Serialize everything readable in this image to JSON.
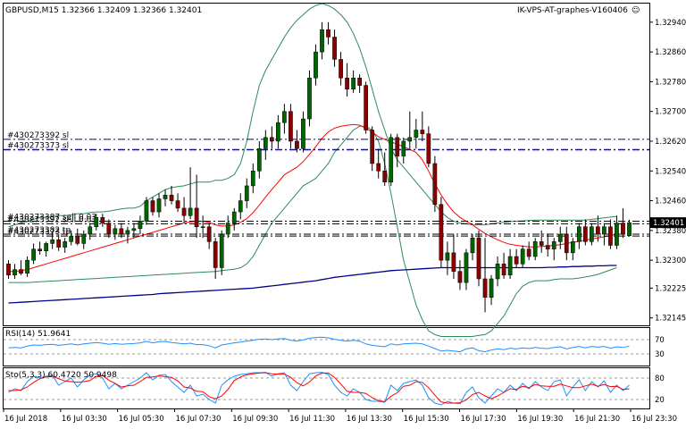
{
  "header": {
    "symbol_line": "GBPUSD,M15  1.32366 1.32409 1.32366 1.32401",
    "indicator_name": "IK-VPS-AT-graphes-V160406",
    "smiley": "☺"
  },
  "price_axis": {
    "ticks": [
      "1.32940",
      "1.32860",
      "1.32780",
      "1.32700",
      "1.32620",
      "1.32540",
      "1.32460",
      "1.32380",
      "1.32300",
      "1.32225",
      "1.32145"
    ],
    "current_price": "1.32401",
    "colors": {
      "current_bg": "#000000",
      "current_fg": "#ffffff"
    }
  },
  "order_lines": [
    {
      "label": "#430273392 sl",
      "price": 1.32625,
      "color": "#000080",
      "style": "dashdot"
    },
    {
      "label": "#430273373 sl",
      "price": 1.32597,
      "color": "#0000ff",
      "style": "dashdot"
    },
    {
      "label": "#430273387 sell 0.03",
      "price": 1.32405,
      "color": "#000000",
      "style": "dashdot"
    },
    {
      "label": "#430273392 sell 0.03",
      "price": 1.32398,
      "color": "#000000",
      "style": "dashdot"
    },
    {
      "label": "#430273382 tp",
      "price": 1.3237,
      "color": "#000000",
      "style": "dashdot"
    },
    {
      "label": "#430273373 tp",
      "price": 1.32365,
      "color": "#000000",
      "style": "dashdot"
    }
  ],
  "rsi": {
    "label": "RSI(14) 51.9641",
    "levels": [
      "70",
      "30"
    ],
    "color": "#1e90ff"
  },
  "stoch": {
    "label": "Sto(5,3,3) 60.4720 50.9498",
    "levels": [
      "80",
      "20"
    ],
    "main_color": "#1e90ff",
    "signal_color": "#ff0000"
  },
  "time_axis": [
    "16 Jul 2018",
    "16 Jul 03:30",
    "16 Jul 05:30",
    "16 Jul 07:30",
    "16 Jul 09:30",
    "16 Jul 11:30",
    "16 Jul 13:30",
    "16 Jul 15:30",
    "16 Jul 17:30",
    "16 Jul 19:30",
    "16 Jul 21:30",
    "16 Jul 23:30"
  ],
  "colors": {
    "bull": "#006400",
    "bear": "#8b0000",
    "bb": "#2e8b57",
    "ma_fast": "#ff0000",
    "ma_slow": "#00008b"
  },
  "chart_data": {
    "type": "candlestick",
    "ylim": [
      1.32125,
      1.3299
    ],
    "ohlc": [
      [
        1.3229,
        1.323,
        1.3225,
        1.3226
      ],
      [
        1.3226,
        1.3229,
        1.3225,
        1.32275
      ],
      [
        1.32275,
        1.323,
        1.3226,
        1.32265
      ],
      [
        1.32265,
        1.3231,
        1.32255,
        1.323
      ],
      [
        1.323,
        1.32345,
        1.3229,
        1.3233
      ],
      [
        1.3233,
        1.3235,
        1.32315,
        1.32325
      ],
      [
        1.32325,
        1.3235,
        1.3231,
        1.32345
      ],
      [
        1.32345,
        1.32375,
        1.3233,
        1.32355
      ],
      [
        1.32355,
        1.3237,
        1.32325,
        1.32335
      ],
      [
        1.32335,
        1.3236,
        1.3232,
        1.3235
      ],
      [
        1.3235,
        1.3238,
        1.3234,
        1.32365
      ],
      [
        1.32365,
        1.32385,
        1.3234,
        1.32345
      ],
      [
        1.32345,
        1.3238,
        1.3233,
        1.3237
      ],
      [
        1.3237,
        1.324,
        1.32355,
        1.3239
      ],
      [
        1.3239,
        1.32425,
        1.3238,
        1.32415
      ],
      [
        1.32415,
        1.32425,
        1.3239,
        1.324
      ],
      [
        1.324,
        1.3241,
        1.3236,
        1.3237
      ],
      [
        1.3237,
        1.32395,
        1.32355,
        1.32385
      ],
      [
        1.32385,
        1.324,
        1.3236,
        1.3237
      ],
      [
        1.3237,
        1.3239,
        1.32345,
        1.3238
      ],
      [
        1.3238,
        1.324,
        1.3236,
        1.32385
      ],
      [
        1.32385,
        1.3242,
        1.3237,
        1.32405
      ],
      [
        1.32405,
        1.3247,
        1.32395,
        1.3246
      ],
      [
        1.3246,
        1.3247,
        1.3242,
        1.3243
      ],
      [
        1.3243,
        1.3248,
        1.32415,
        1.32465
      ],
      [
        1.32465,
        1.3249,
        1.32445,
        1.32475
      ],
      [
        1.32475,
        1.325,
        1.3245,
        1.3246
      ],
      [
        1.3246,
        1.3248,
        1.3243,
        1.3244
      ],
      [
        1.3244,
        1.3247,
        1.324,
        1.3242
      ],
      [
        1.3242,
        1.3255,
        1.3241,
        1.3244
      ],
      [
        1.3244,
        1.3253,
        1.3236,
        1.3239
      ],
      [
        1.3239,
        1.3242,
        1.3236,
        1.3239
      ],
      [
        1.3239,
        1.324,
        1.3233,
        1.3235
      ],
      [
        1.3235,
        1.3236,
        1.3225,
        1.3228
      ],
      [
        1.3228,
        1.3238,
        1.3226,
        1.3237
      ],
      [
        1.3237,
        1.3242,
        1.3236,
        1.324
      ],
      [
        1.324,
        1.3244,
        1.3238,
        1.3243
      ],
      [
        1.3243,
        1.3248,
        1.3241,
        1.3246
      ],
      [
        1.3246,
        1.3252,
        1.3244,
        1.325
      ],
      [
        1.325,
        1.3256,
        1.3248,
        1.3254
      ],
      [
        1.3254,
        1.3262,
        1.3252,
        1.326
      ],
      [
        1.326,
        1.3265,
        1.3257,
        1.3263
      ],
      [
        1.3263,
        1.3266,
        1.326,
        1.3262
      ],
      [
        1.3262,
        1.3269,
        1.326,
        1.3267
      ],
      [
        1.3267,
        1.3272,
        1.3264,
        1.327
      ],
      [
        1.327,
        1.3272,
        1.326,
        1.3262
      ],
      [
        1.3262,
        1.3265,
        1.3259,
        1.326
      ],
      [
        1.326,
        1.327,
        1.3259,
        1.3268
      ],
      [
        1.3268,
        1.3281,
        1.3266,
        1.3279
      ],
      [
        1.3279,
        1.3288,
        1.3277,
        1.3286
      ],
      [
        1.3286,
        1.3294,
        1.3284,
        1.3292
      ],
      [
        1.3292,
        1.3294,
        1.3288,
        1.329
      ],
      [
        1.329,
        1.3292,
        1.3282,
        1.3284
      ],
      [
        1.3284,
        1.3286,
        1.3277,
        1.3279
      ],
      [
        1.3279,
        1.3283,
        1.3274,
        1.3276
      ],
      [
        1.3276,
        1.3281,
        1.3275,
        1.3279
      ],
      [
        1.3279,
        1.328,
        1.3275,
        1.3277
      ],
      [
        1.3277,
        1.3278,
        1.3264,
        1.3265
      ],
      [
        1.3265,
        1.3266,
        1.3254,
        1.3256
      ],
      [
        1.3256,
        1.326,
        1.3252,
        1.3254
      ],
      [
        1.3254,
        1.3259,
        1.325,
        1.3251
      ],
      [
        1.3251,
        1.3264,
        1.325,
        1.3263
      ],
      [
        1.3263,
        1.3264,
        1.3255,
        1.3258
      ],
      [
        1.3258,
        1.3263,
        1.3256,
        1.3262
      ],
      [
        1.3262,
        1.327,
        1.326,
        1.3263
      ],
      [
        1.3263,
        1.3268,
        1.326,
        1.3265
      ],
      [
        1.3265,
        1.327,
        1.3262,
        1.3264
      ],
      [
        1.3264,
        1.3266,
        1.3255,
        1.3256
      ],
      [
        1.3256,
        1.3258,
        1.3243,
        1.3245
      ],
      [
        1.3245,
        1.3247,
        1.3228,
        1.323
      ],
      [
        1.323,
        1.3235,
        1.3226,
        1.3232
      ],
      [
        1.3232,
        1.3237,
        1.3225,
        1.3227
      ],
      [
        1.3227,
        1.323,
        1.3222,
        1.3224
      ],
      [
        1.3224,
        1.3233,
        1.3222,
        1.3232
      ],
      [
        1.3232,
        1.3237,
        1.323,
        1.3236
      ],
      [
        1.3236,
        1.3238,
        1.3223,
        1.3225
      ],
      [
        1.3225,
        1.3236,
        1.3216,
        1.322
      ],
      [
        1.322,
        1.3226,
        1.3218,
        1.3225
      ],
      [
        1.3225,
        1.3231,
        1.3223,
        1.3229
      ],
      [
        1.3229,
        1.3232,
        1.3225,
        1.3226
      ],
      [
        1.3226,
        1.3233,
        1.3225,
        1.3231
      ],
      [
        1.3231,
        1.3233,
        1.3228,
        1.3229
      ],
      [
        1.3229,
        1.3234,
        1.3228,
        1.3233
      ],
      [
        1.3233,
        1.3235,
        1.323,
        1.3231
      ],
      [
        1.3231,
        1.3236,
        1.323,
        1.3235
      ],
      [
        1.3235,
        1.3238,
        1.3232,
        1.3234
      ],
      [
        1.3234,
        1.3237,
        1.3231,
        1.3233
      ],
      [
        1.3233,
        1.3236,
        1.323,
        1.3235
      ],
      [
        1.3235,
        1.3239,
        1.3233,
        1.3237
      ],
      [
        1.3237,
        1.3239,
        1.323,
        1.3232
      ],
      [
        1.3232,
        1.3236,
        1.323,
        1.3235
      ],
      [
        1.3235,
        1.324,
        1.3233,
        1.3239
      ],
      [
        1.3239,
        1.3241,
        1.3234,
        1.3235
      ],
      [
        1.3235,
        1.324,
        1.3234,
        1.3239
      ],
      [
        1.3239,
        1.3242,
        1.3235,
        1.3237
      ],
      [
        1.3237,
        1.324,
        1.3234,
        1.3239
      ],
      [
        1.3239,
        1.3241,
        1.3233,
        1.3234
      ],
      [
        1.3234,
        1.3242,
        1.3233,
        1.324
      ],
      [
        1.324,
        1.3244,
        1.3236,
        1.3237
      ],
      [
        1.32366,
        1.32409,
        1.32366,
        1.32401
      ]
    ],
    "bb_upper": [
      1.3239,
      1.32395,
      1.324,
      1.32405,
      1.3241,
      1.32415,
      1.32415,
      1.32418,
      1.3242,
      1.3242,
      1.32422,
      1.32425,
      1.32425,
      1.32428,
      1.3243,
      1.3243,
      1.32432,
      1.32435,
      1.32438,
      1.3244,
      1.3244,
      1.32445,
      1.3246,
      1.3247,
      1.3248,
      1.3249,
      1.32495,
      1.32498,
      1.325,
      1.32505,
      1.3251,
      1.3251,
      1.3251,
      1.32515,
      1.32515,
      1.3252,
      1.3253,
      1.3256,
      1.3262,
      1.327,
      1.3277,
      1.3281,
      1.3284,
      1.3287,
      1.329,
      1.32925,
      1.32945,
      1.3296,
      1.32975,
      1.32985,
      1.3299,
      1.32985,
      1.32975,
      1.3296,
      1.3294,
      1.3291,
      1.3287,
      1.3282,
      1.3276,
      1.327,
      1.3265,
      1.326,
      1.3257,
      1.3255,
      1.3253,
      1.3251,
      1.3249,
      1.3247,
      1.3245,
      1.3243,
      1.32415,
      1.32405,
      1.324,
      1.32398,
      1.32395,
      1.32395,
      1.32395,
      1.32398,
      1.324,
      1.32402,
      1.32404,
      1.32405,
      1.32406,
      1.32407,
      1.32408,
      1.32408,
      1.32408,
      1.32408,
      1.32408,
      1.32408,
      1.32408,
      1.32408,
      1.32408,
      1.3241,
      1.32412,
      1.32414,
      1.32416,
      1.32418
    ],
    "bb_lower": [
      1.3224,
      1.3224,
      1.3224,
      1.3224,
      1.32241,
      1.32242,
      1.32243,
      1.32244,
      1.32245,
      1.32246,
      1.32247,
      1.32248,
      1.32249,
      1.3225,
      1.32251,
      1.32252,
      1.32253,
      1.32254,
      1.32255,
      1.32256,
      1.32257,
      1.32258,
      1.32259,
      1.3226,
      1.32261,
      1.32262,
      1.32263,
      1.32264,
      1.32265,
      1.32266,
      1.32267,
      1.32268,
      1.32269,
      1.3227,
      1.32272,
      1.32274,
      1.32276,
      1.3228,
      1.3229,
      1.3231,
      1.3234,
      1.3237,
      1.324,
      1.3242,
      1.3244,
      1.3246,
      1.3248,
      1.325,
      1.3251,
      1.3252,
      1.3254,
      1.3256,
      1.3259,
      1.3261,
      1.3263,
      1.3265,
      1.3266,
      1.3266,
      1.3265,
      1.3262,
      1.3256,
      1.3248,
      1.3239,
      1.323,
      1.3224,
      1.3218,
      1.3214,
      1.3211,
      1.321,
      1.32095,
      1.32095,
      1.32095,
      1.32095,
      1.32095,
      1.32095,
      1.32098,
      1.321,
      1.3211,
      1.3213,
      1.3215,
      1.3218,
      1.3221,
      1.3223,
      1.3224,
      1.32245,
      1.32245,
      1.32245,
      1.32248,
      1.3225,
      1.3225,
      1.3225,
      1.32252,
      1.32255,
      1.32258,
      1.32262,
      1.32268,
      1.32274,
      1.3228
    ],
    "ma_fast": [
      1.3227,
      1.3227,
      1.32272,
      1.32275,
      1.3228,
      1.32285,
      1.3229,
      1.32295,
      1.323,
      1.32305,
      1.3231,
      1.32315,
      1.3232,
      1.32325,
      1.3233,
      1.32335,
      1.3234,
      1.32345,
      1.3235,
      1.32355,
      1.3236,
      1.32365,
      1.3237,
      1.32375,
      1.3238,
      1.32385,
      1.3239,
      1.32395,
      1.324,
      1.32403,
      1.32405,
      1.32405,
      1.32402,
      1.32395,
      1.32392,
      1.32392,
      1.32395,
      1.32402,
      1.32412,
      1.32428,
      1.32448,
      1.3247,
      1.3249,
      1.3251,
      1.3253,
      1.3254,
      1.3255,
      1.32565,
      1.32585,
      1.32605,
      1.32628,
      1.32645,
      1.32655,
      1.3266,
      1.32663,
      1.32665,
      1.32663,
      1.32655,
      1.32645,
      1.32632,
      1.32625,
      1.32618,
      1.32612,
      1.32605,
      1.32598,
      1.3259,
      1.3257,
      1.3254,
      1.32505,
      1.32475,
      1.3245,
      1.3243,
      1.32415,
      1.32405,
      1.32395,
      1.32383,
      1.32372,
      1.32363,
      1.32355,
      1.32348,
      1.32343,
      1.3234,
      1.32338,
      1.32336,
      1.32336,
      1.32337,
      1.32338,
      1.3234,
      1.32342,
      1.32345,
      1.32348,
      1.32351,
      1.32354,
      1.32357,
      1.3236,
      1.32363,
      1.32366,
      1.3237
    ],
    "ma_slow": [
      1.32185,
      1.32186,
      1.32187,
      1.32188,
      1.32189,
      1.3219,
      1.32191,
      1.32192,
      1.32193,
      1.32194,
      1.32195,
      1.32196,
      1.32197,
      1.32198,
      1.32199,
      1.322,
      1.32201,
      1.32202,
      1.32203,
      1.32204,
      1.32205,
      1.32206,
      1.32207,
      1.32208,
      1.3221,
      1.32211,
      1.32212,
      1.32213,
      1.32214,
      1.32215,
      1.32216,
      1.32217,
      1.32218,
      1.32219,
      1.3222,
      1.32221,
      1.32222,
      1.32223,
      1.32224,
      1.32225,
      1.32227,
      1.32229,
      1.32231,
      1.32233,
      1.32235,
      1.32237,
      1.32239,
      1.32241,
      1.32243,
      1.32245,
      1.32248,
      1.32251,
      1.32254,
      1.32256,
      1.32258,
      1.3226,
      1.32262,
      1.32264,
      1.32266,
      1.32268,
      1.3227,
      1.32272,
      1.32273,
      1.32274,
      1.32275,
      1.32276,
      1.32277,
      1.32278,
      1.32279,
      1.3228,
      1.3228,
      1.3228,
      1.3228,
      1.3228,
      1.3228,
      1.3228,
      1.3228,
      1.3228,
      1.3228,
      1.3228,
      1.3228,
      1.3228,
      1.3228,
      1.3228,
      1.3228,
      1.3228,
      1.32281,
      1.32281,
      1.32282,
      1.32282,
      1.32283,
      1.32283,
      1.32284,
      1.32284,
      1.32285,
      1.32285,
      1.32286,
      1.32286
    ],
    "rsi_values": [
      47,
      48,
      47,
      52,
      55,
      54,
      56,
      57,
      54,
      56,
      58,
      55,
      58,
      60,
      62,
      60,
      57,
      59,
      57,
      58,
      59,
      61,
      65,
      61,
      64,
      65,
      62,
      60,
      58,
      60,
      56,
      56,
      53,
      47,
      55,
      58,
      61,
      63,
      66,
      68,
      71,
      72,
      70,
      72,
      73,
      68,
      66,
      69,
      74,
      76,
      77,
      75,
      71,
      68,
      66,
      68,
      66,
      58,
      54,
      52,
      50,
      58,
      55,
      58,
      59,
      60,
      58,
      52,
      45,
      38,
      40,
      38,
      36,
      44,
      47,
      39,
      36,
      41,
      44,
      42,
      46,
      44,
      47,
      45,
      48,
      46,
      45,
      48,
      50,
      44,
      48,
      51,
      47,
      51,
      49,
      51,
      46,
      50,
      48,
      52
    ],
    "sto_main": [
      40,
      50,
      45,
      70,
      85,
      80,
      85,
      88,
      60,
      70,
      80,
      55,
      75,
      88,
      92,
      80,
      50,
      65,
      50,
      60,
      70,
      80,
      95,
      75,
      88,
      90,
      70,
      55,
      40,
      60,
      30,
      35,
      20,
      10,
      60,
      75,
      85,
      90,
      92,
      95,
      95,
      96,
      85,
      92,
      95,
      60,
      45,
      70,
      92,
      95,
      96,
      90,
      60,
      40,
      30,
      50,
      40,
      20,
      15,
      15,
      12,
      60,
      45,
      65,
      70,
      75,
      60,
      25,
      10,
      5,
      15,
      10,
      8,
      40,
      55,
      25,
      10,
      30,
      50,
      40,
      60,
      45,
      65,
      50,
      70,
      55,
      45,
      70,
      75,
      30,
      55,
      75,
      45,
      70,
      55,
      72,
      40,
      60,
      45,
      60
    ],
    "sto_signal": [
      45,
      45,
      47,
      55,
      68,
      78,
      83,
      85,
      78,
      72,
      70,
      68,
      70,
      73,
      85,
      87,
      74,
      65,
      55,
      58,
      60,
      70,
      82,
      83,
      86,
      84,
      82,
      72,
      55,
      52,
      43,
      42,
      28,
      22,
      30,
      48,
      73,
      83,
      89,
      92,
      94,
      95,
      92,
      91,
      91,
      82,
      67,
      58,
      69,
      86,
      94,
      94,
      82,
      63,
      43,
      40,
      40,
      37,
      25,
      17,
      14,
      29,
      39,
      57,
      60,
      70,
      68,
      53,
      32,
      13,
      10,
      10,
      11,
      19,
      34,
      40,
      30,
      22,
      30,
      40,
      50,
      48,
      57,
      53,
      62,
      58,
      57,
      57,
      63,
      58,
      53,
      53,
      58,
      63,
      57,
      62,
      56,
      57,
      48,
      50
    ]
  }
}
